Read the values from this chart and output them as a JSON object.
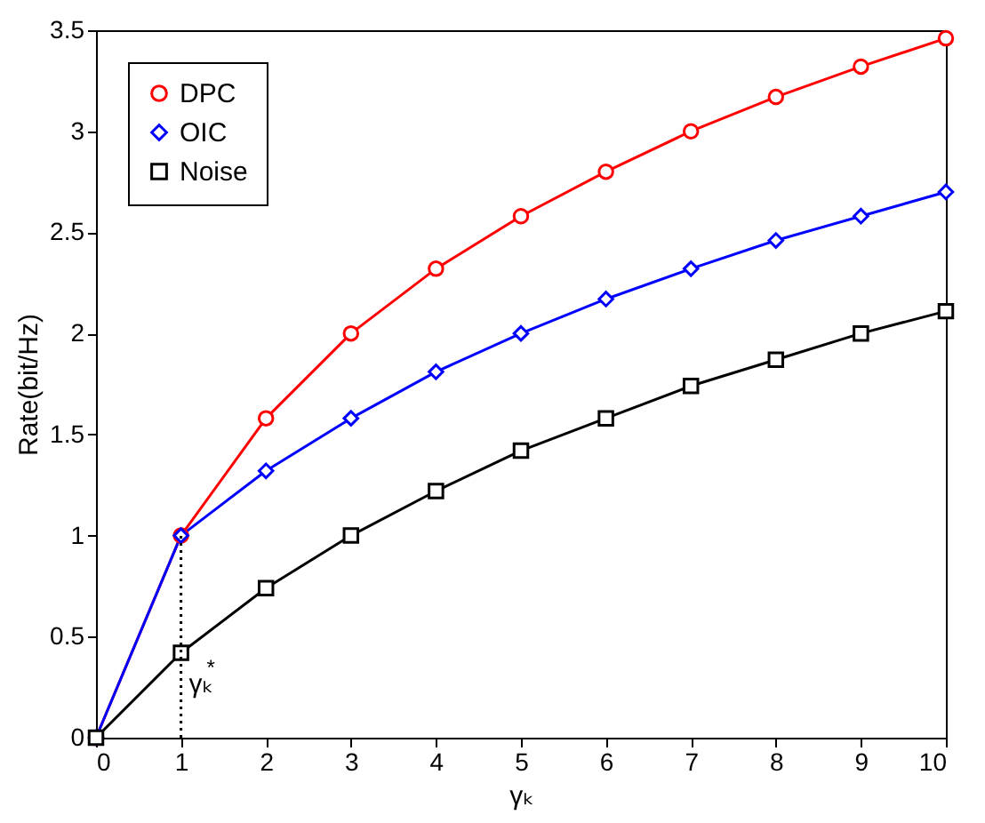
{
  "chart_data": {
    "type": "line",
    "xlabel": "γₖ",
    "ylabel": "Rate(bit/Hz)",
    "x": [
      0,
      1,
      2,
      3,
      4,
      5,
      6,
      7,
      8,
      9,
      10
    ],
    "series": [
      {
        "name": "DPC",
        "color": "#ff0000",
        "marker": "circle",
        "values": [
          0,
          1,
          1.58,
          2,
          2.32,
          2.58,
          2.8,
          3,
          3.17,
          3.32,
          3.46
        ]
      },
      {
        "name": "OIC",
        "color": "#0000ff",
        "marker": "diamond",
        "values": [
          0,
          1,
          1.32,
          1.58,
          1.81,
          2,
          2.17,
          2.32,
          2.46,
          2.58,
          2.7
        ]
      },
      {
        "name": "Noise",
        "color": "#000000",
        "marker": "square",
        "values": [
          0,
          0.42,
          0.74,
          1,
          1.22,
          1.42,
          1.58,
          1.74,
          1.87,
          2,
          2.11
        ]
      },
      {
        "type": "line",
        "color": "#000000",
        "marker": "none",
        "line_style": "dotted",
        "x": [
          1,
          1
        ],
        "values": [
          0,
          1
        ]
      }
    ],
    "annotations": [
      {
        "text": "γₖ$^{*}$",
        "x": 1.05,
        "y": 0.2
      }
    ],
    "xlim": [
      0,
      10
    ],
    "xticks": [
      0,
      1,
      2,
      3,
      4,
      5,
      6,
      7,
      8,
      9,
      10
    ],
    "ylim": [
      0,
      3.5
    ],
    "yticks": [
      0,
      0.5,
      1,
      1.5,
      2,
      2.5,
      3,
      3.5
    ],
    "grid": false,
    "legend": "top left"
  }
}
